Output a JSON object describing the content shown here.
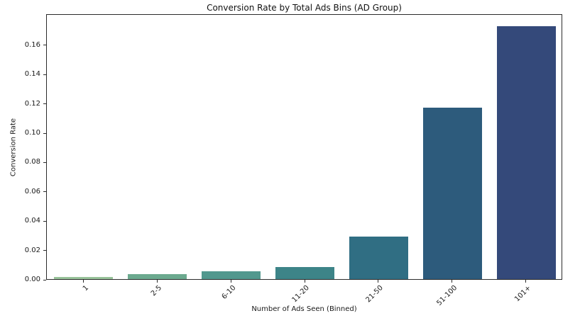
{
  "figure": {
    "background": "#ffffff",
    "axis_color": "#2b2b2b",
    "text_color": "#1a1a1a"
  },
  "chart_data": {
    "type": "bar",
    "title": "Conversion Rate by Total Ads Bins (AD Group)",
    "xlabel": "Number of Ads Seen (Binned)",
    "ylabel": "Conversion Rate",
    "categories": [
      "1",
      "2-5",
      "6-10",
      "11-20",
      "21-50",
      "51-100",
      "101+"
    ],
    "values": [
      0.0015,
      0.0033,
      0.0053,
      0.0084,
      0.029,
      0.1168,
      0.1723
    ],
    "bar_colors": [
      "#98c39a",
      "#6caa8f",
      "#52988e",
      "#3d8488",
      "#306e83",
      "#2d5b7c",
      "#34497a"
    ],
    "ylim": [
      0,
      0.1812
    ],
    "ytick_labels": [
      "0.00",
      "0.02",
      "0.04",
      "0.06",
      "0.08",
      "0.10",
      "0.12",
      "0.14",
      "0.16"
    ],
    "x_tick_rotation_deg": 45,
    "bar_width_fraction": 0.8,
    "grid": false,
    "legend_position": "none"
  }
}
